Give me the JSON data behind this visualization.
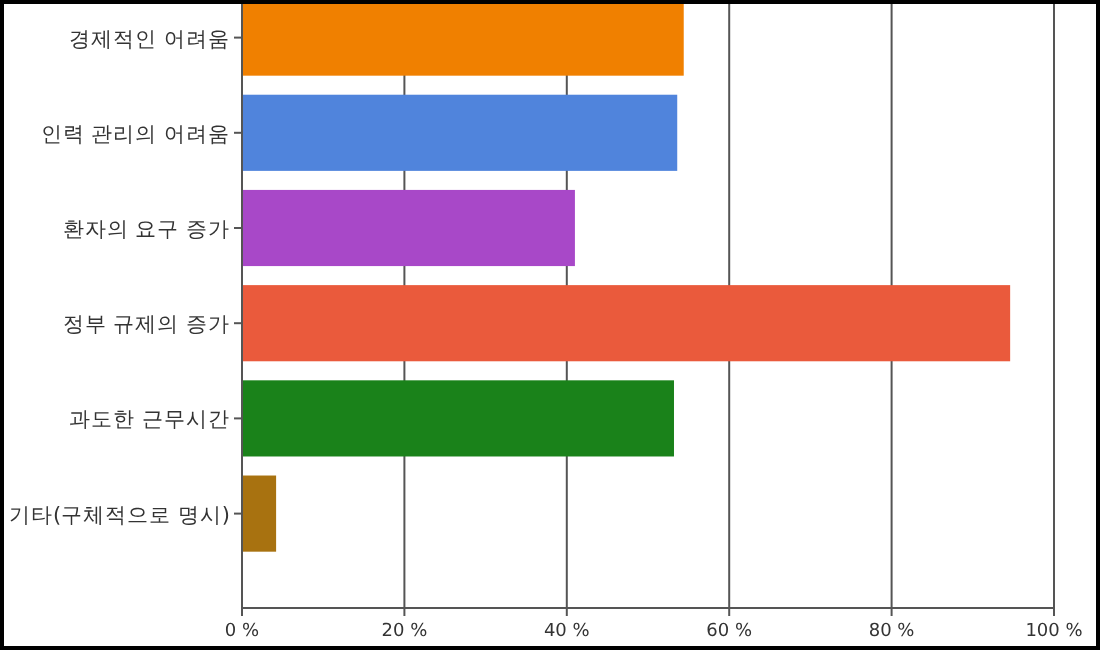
{
  "chart_data": {
    "type": "bar",
    "orientation": "horizontal",
    "categories": [
      "경제적인 어려움",
      "인력 관리의 어려움",
      "환자의 요구 증가",
      "정부 규제의 증가",
      "과도한 근무시간",
      "기타(구체적으로 명시)"
    ],
    "values": [
      54.4,
      53.6,
      41,
      94.6,
      53.2,
      4.2
    ],
    "colors": [
      "#f08000",
      "#5084dc",
      "#a848c8",
      "#ea5a3c",
      "#1a821a",
      "#a87210"
    ],
    "xlim": [
      0,
      100
    ],
    "xticks": [
      {
        "value": 0,
        "label": "0 %"
      },
      {
        "value": 20,
        "label": "20 %"
      },
      {
        "value": 40,
        "label": "40 %"
      },
      {
        "value": 60,
        "label": "60 %"
      },
      {
        "value": 80,
        "label": "80 %"
      },
      {
        "value": 100,
        "label": "100 %"
      }
    ],
    "grid": "x"
  }
}
